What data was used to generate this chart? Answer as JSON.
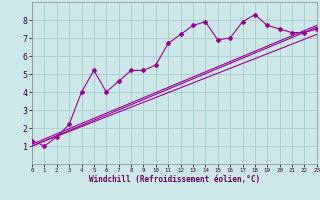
{
  "xlabel": "Windchill (Refroidissement éolien,°C)",
  "bg_color": "#cce8e8",
  "grid_color": "#aacccc",
  "line_color": "#990099",
  "xlim": [
    0,
    23
  ],
  "ylim": [
    0,
    9
  ],
  "series1_x": [
    0,
    1,
    2,
    3,
    4,
    5,
    6,
    7,
    8,
    9,
    10,
    11,
    12,
    13,
    14,
    15,
    16,
    17,
    18,
    19,
    20,
    21,
    22,
    23
  ],
  "series1_y": [
    1.3,
    1.0,
    1.5,
    2.2,
    4.0,
    5.2,
    4.0,
    4.6,
    5.2,
    5.2,
    5.5,
    6.7,
    7.2,
    7.7,
    7.9,
    6.9,
    7.0,
    7.9,
    8.3,
    7.7,
    7.5,
    7.3,
    7.3,
    7.5
  ],
  "series2_x": [
    0,
    23
  ],
  "series2_y": [
    1.1,
    7.7
  ],
  "series3_x": [
    0,
    23
  ],
  "series3_y": [
    1.0,
    7.2
  ],
  "series4_x": [
    0,
    23
  ],
  "series4_y": [
    1.0,
    7.6
  ],
  "xticks": [
    0,
    1,
    2,
    3,
    4,
    5,
    6,
    7,
    8,
    9,
    10,
    11,
    12,
    13,
    14,
    15,
    16,
    17,
    18,
    19,
    20,
    21,
    22,
    23
  ],
  "yticks": [
    1,
    2,
    3,
    4,
    5,
    6,
    7,
    8
  ],
  "xlabel_fontsize": 5.5,
  "xlabel_color": "#660066",
  "tick_fontsize_x": 4.2,
  "tick_fontsize_y": 6.0,
  "linewidth": 0.8,
  "markersize": 2.0
}
